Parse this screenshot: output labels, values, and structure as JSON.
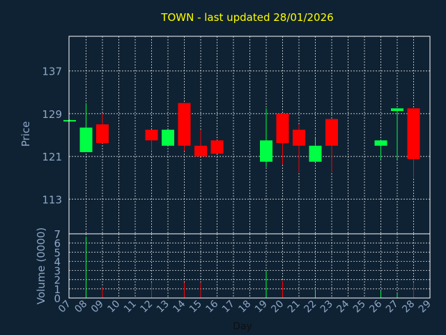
{
  "chart_data": {
    "type": "candlestick",
    "title": "TOWN - last updated 28/01/2026",
    "ylabel": "Price",
    "volume_ylabel": "Volume (0000)",
    "xlabel": "Day",
    "price_ticks": [
      "137",
      "129",
      "121",
      "113"
    ],
    "price_tick_values": [
      137,
      129,
      121,
      113
    ],
    "price_ylim": [
      106.5,
      143.5
    ],
    "volume_ticks": [
      "0",
      "1",
      "2",
      "3",
      "4",
      "5",
      "6",
      "7"
    ],
    "volume_ylim": [
      0,
      7
    ],
    "x_ticks": [
      "07",
      "08",
      "09",
      "10",
      "11",
      "12",
      "13",
      "14",
      "15",
      "16",
      "17",
      "18",
      "19",
      "20",
      "21",
      "22",
      "23",
      "24",
      "25",
      "26",
      "27",
      "28",
      "29"
    ],
    "grid": true,
    "colors": {
      "background": "#0f2233",
      "axis": "#ffffff",
      "grid": "#ffffff",
      "title": "#ffff00",
      "label": "#8fa8c8",
      "tick": "#8fa8c8",
      "up": "#00ff44",
      "down": "#ff0000",
      "neutral": "#00ff44"
    },
    "candles": [
      {
        "day": "07",
        "open": 127.8,
        "close": 127.8,
        "high": 127.9,
        "low": 127.7,
        "volume": 0
      },
      {
        "day": "08",
        "open": 121.8,
        "close": 126.4,
        "high": 131.0,
        "low": 121.8,
        "volume": 6.7
      },
      {
        "day": "09",
        "open": 127.0,
        "close": 123.5,
        "high": 129.0,
        "low": 123.5,
        "volume": 1.2
      },
      {
        "day": "12",
        "open": 126.0,
        "close": 124.0,
        "high": 126.0,
        "low": 122.0,
        "volume": 1.7
      },
      {
        "day": "13",
        "open": 123.0,
        "close": 126.0,
        "high": 126.0,
        "low": 123.0,
        "volume": 0.1
      },
      {
        "day": "14",
        "open": 131.0,
        "close": 123.0,
        "high": 131.0,
        "low": 122.0,
        "volume": 1.7
      },
      {
        "day": "15",
        "open": 123.0,
        "close": 121.0,
        "high": 126.0,
        "low": 121.0,
        "volume": 1.7
      },
      {
        "day": "16",
        "open": 124.0,
        "close": 121.5,
        "high": 124.0,
        "low": 121.5,
        "volume": 0.1
      },
      {
        "day": "19",
        "open": 120.0,
        "close": 124.0,
        "high": 130.0,
        "low": 119.0,
        "volume": 3.0
      },
      {
        "day": "20",
        "open": 129.0,
        "close": 123.5,
        "high": 129.0,
        "low": 119.5,
        "volume": 1.9
      },
      {
        "day": "21",
        "open": 126.0,
        "close": 123.0,
        "high": 127.0,
        "low": 118.0,
        "volume": 0.1
      },
      {
        "day": "22",
        "open": 120.0,
        "close": 123.0,
        "high": 124.5,
        "low": 120.0,
        "volume": 0.9
      },
      {
        "day": "23",
        "open": 128.0,
        "close": 123.0,
        "high": 128.0,
        "low": 118.0,
        "volume": 0.1
      },
      {
        "day": "26",
        "open": 123.0,
        "close": 124.0,
        "high": 124.0,
        "low": 120.5,
        "volume": 0.8
      },
      {
        "day": "27",
        "open": 129.5,
        "close": 130.0,
        "high": 130.0,
        "low": 120.5,
        "volume": 0.5
      },
      {
        "day": "28",
        "open": 130.0,
        "close": 120.5,
        "high": 130.0,
        "low": 117.0,
        "volume": 1.7
      }
    ]
  }
}
